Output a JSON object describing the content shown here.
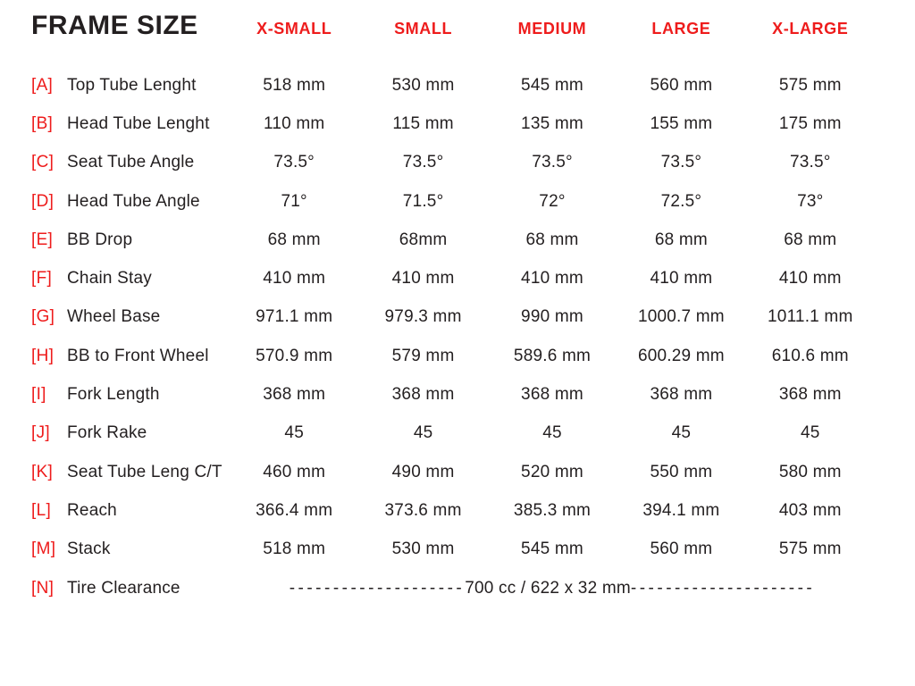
{
  "colors": {
    "accent_red": "#ee1c1c",
    "text": "#231f20",
    "background": "#ffffff"
  },
  "chart_data": {
    "type": "table",
    "title": "FRAME SIZE",
    "columns": [
      "X-SMALL",
      "SMALL",
      "MEDIUM",
      "LARGE",
      "X-LARGE"
    ],
    "rows": [
      {
        "key": "[A]",
        "label": "Top Tube Lenght",
        "values": [
          "518 mm",
          "530 mm",
          "545 mm",
          "560 mm",
          "575 mm"
        ]
      },
      {
        "key": "[B]",
        "label": "Head Tube Lenght",
        "values": [
          "110 mm",
          "115 mm",
          "135 mm",
          "155 mm",
          "175 mm"
        ]
      },
      {
        "key": "[C]",
        "label": "Seat Tube Angle",
        "values": [
          "73.5°",
          "73.5°",
          "73.5°",
          "73.5°",
          "73.5°"
        ]
      },
      {
        "key": "[D]",
        "label": "Head Tube Angle",
        "values": [
          "71°",
          "71.5°",
          "72°",
          "72.5°",
          "73°"
        ]
      },
      {
        "key": "[E]",
        "label": "BB Drop",
        "values": [
          "68 mm",
          "68mm",
          "68 mm",
          "68 mm",
          "68 mm"
        ]
      },
      {
        "key": "[F]",
        "label": "Chain Stay",
        "values": [
          "410 mm",
          "410 mm",
          "410 mm",
          "410 mm",
          "410 mm"
        ]
      },
      {
        "key": "[G]",
        "label": "Wheel Base",
        "values": [
          "971.1 mm",
          "979.3 mm",
          "990 mm",
          "1000.7 mm",
          "1011.1 mm"
        ]
      },
      {
        "key": "[H]",
        "label": "BB to Front Wheel",
        "values": [
          "570.9 mm",
          "579 mm",
          "589.6 mm",
          "600.29 mm",
          "610.6 mm"
        ]
      },
      {
        "key": "[I]",
        "label": "Fork Length",
        "values": [
          "368 mm",
          "368 mm",
          "368 mm",
          "368 mm",
          "368 mm"
        ]
      },
      {
        "key": "[J]",
        "label": "Fork Rake",
        "values": [
          "45",
          "45",
          "45",
          "45",
          "45"
        ]
      },
      {
        "key": "[K]",
        "label": "Seat Tube Leng C/T",
        "values": [
          "460 mm",
          "490 mm",
          "520 mm",
          "550 mm",
          "580 mm"
        ]
      },
      {
        "key": "[L]",
        "label": "Reach",
        "values": [
          "366.4 mm",
          "373.6 mm",
          "385.3 mm",
          "394.1 mm",
          "403 mm"
        ]
      },
      {
        "key": "[M]",
        "label": "Stack",
        "values": [
          "518 mm",
          "530 mm",
          "545 mm",
          "560 mm",
          "575 mm"
        ]
      },
      {
        "key": "[N]",
        "label": "Tire Clearance",
        "span_value": {
          "dashes_left": "--------------------",
          "center": "700 cc / 622 x 32 mm",
          "dashes_right": "---------------------"
        }
      }
    ]
  }
}
